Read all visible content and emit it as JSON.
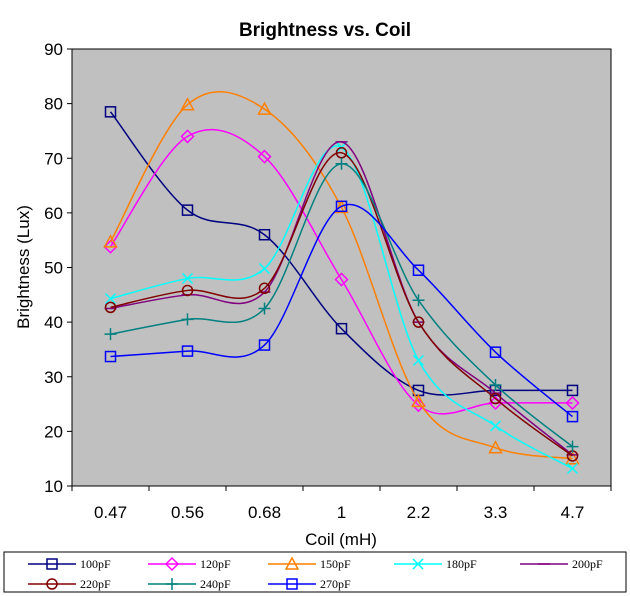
{
  "chart_data": {
    "type": "line",
    "title": "Brightness vs. Coil",
    "xlabel": "Coil (mH)",
    "ylabel": "Brightness (Lux)",
    "categories": [
      "0.47",
      "0.56",
      "0.68",
      "1",
      "2.2",
      "3.3",
      "4.7"
    ],
    "ylim": [
      10,
      90
    ],
    "yticks": [
      10,
      20,
      30,
      40,
      50,
      60,
      70,
      80,
      90
    ],
    "grid": false,
    "plot_background": "#c0c0c0",
    "legend_position": "bottom",
    "series": [
      {
        "name": "100pF",
        "color": "#000080",
        "marker": "square",
        "values": [
          78.5,
          60.5,
          56,
          38.8,
          27.5,
          27.5,
          27.5
        ]
      },
      {
        "name": "120pF",
        "color": "#ff00ff",
        "marker": "diamond",
        "values": [
          53.8,
          74,
          70.3,
          47.8,
          24.8,
          25.2,
          25.2
        ]
      },
      {
        "name": "150pF",
        "color": "#ff7f00",
        "marker": "triangle",
        "values": [
          54.7,
          79.8,
          79,
          61,
          25.5,
          17,
          15
        ]
      },
      {
        "name": "180pF",
        "color": "#00ffff",
        "marker": "x",
        "values": [
          44.3,
          48,
          49.8,
          72,
          33,
          21,
          13.2
        ]
      },
      {
        "name": "200pF",
        "color": "#800080",
        "marker": "dash",
        "values": [
          42.5,
          45,
          45.5,
          73,
          40,
          27,
          15.7
        ]
      },
      {
        "name": "220pF",
        "color": "#800000",
        "marker": "circle",
        "values": [
          42.7,
          45.8,
          46.2,
          71,
          40,
          26,
          15.5
        ]
      },
      {
        "name": "240pF",
        "color": "#008080",
        "marker": "plus",
        "values": [
          37.8,
          40.5,
          42.5,
          69,
          44,
          28.5,
          17.2
        ]
      },
      {
        "name": "270pF",
        "color": "#0000ff",
        "marker": "square",
        "values": [
          33.7,
          34.7,
          35.8,
          61.2,
          49.5,
          34.5,
          22.7
        ]
      }
    ]
  }
}
